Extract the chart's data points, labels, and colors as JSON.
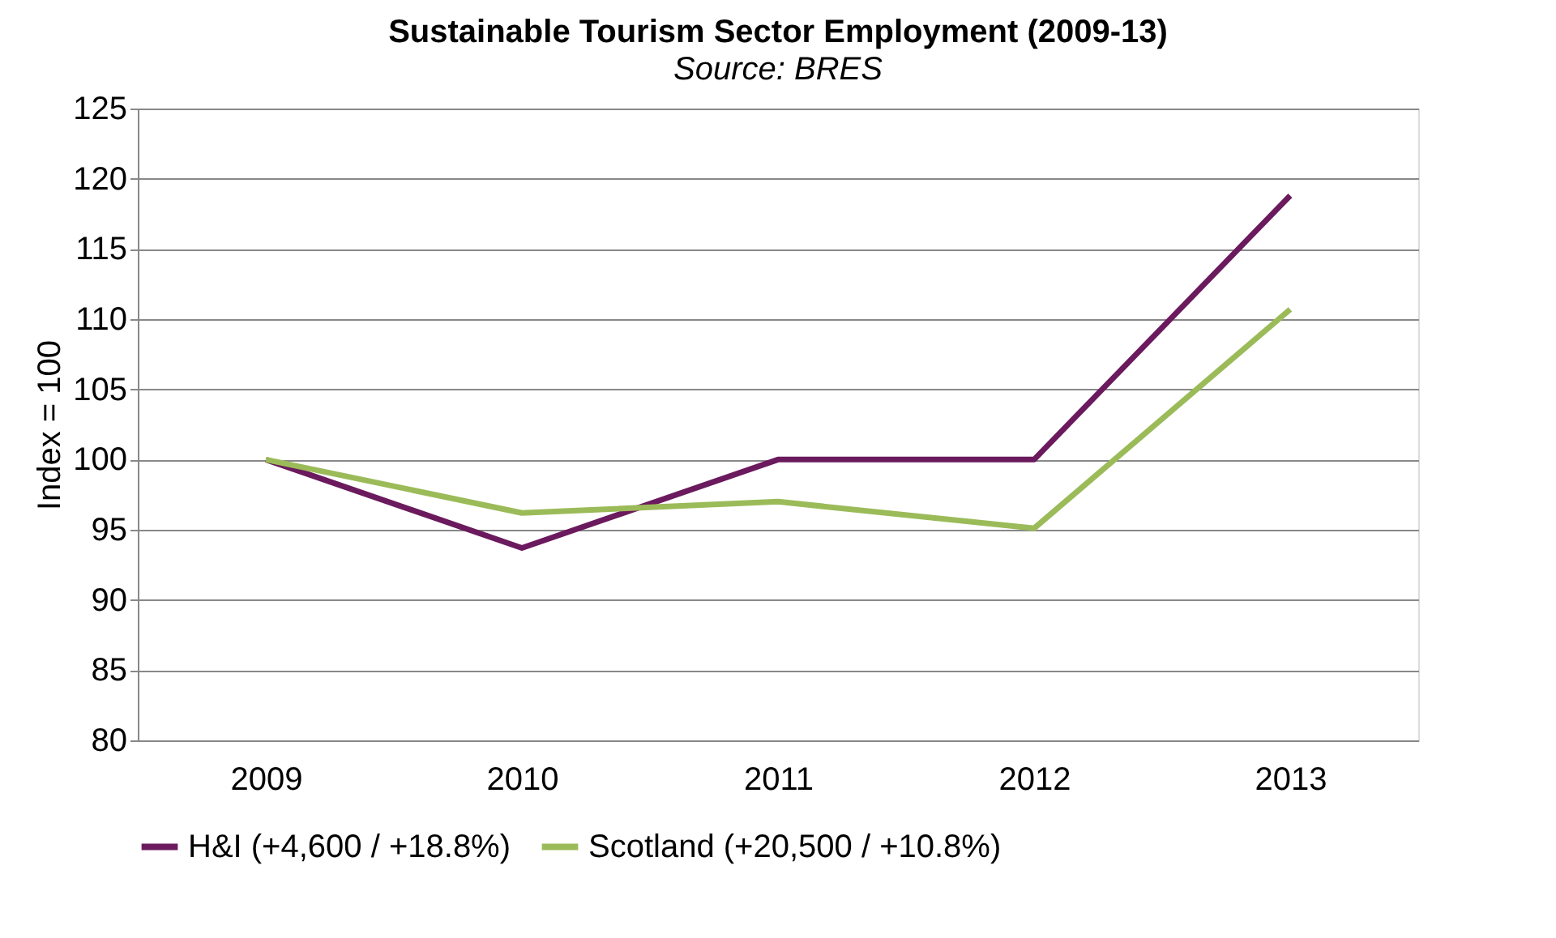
{
  "chart_data": {
    "type": "line",
    "title": "Sustainable Tourism Sector Employment (2009-13)",
    "subtitle": "Source: BRES",
    "ylabel": "Index = 100",
    "categories": [
      "2009",
      "2010",
      "2011",
      "2012",
      "2013"
    ],
    "series": [
      {
        "name": "H&I (+4,600 / +18.8%)",
        "color": "#6b1a5e",
        "values": [
          100,
          93.7,
          100,
          100,
          118.8
        ]
      },
      {
        "name": "Scotland (+20,500 / +10.8%)",
        "color": "#9bbb59",
        "values": [
          100,
          96.2,
          97.0,
          95.1,
          110.7
        ]
      }
    ],
    "ylim": [
      80,
      125
    ],
    "yticks": [
      80,
      85,
      90,
      95,
      100,
      105,
      110,
      115,
      120,
      125
    ],
    "grid": "y",
    "legend": "bottom",
    "marker": "none",
    "line_style": "solid"
  }
}
